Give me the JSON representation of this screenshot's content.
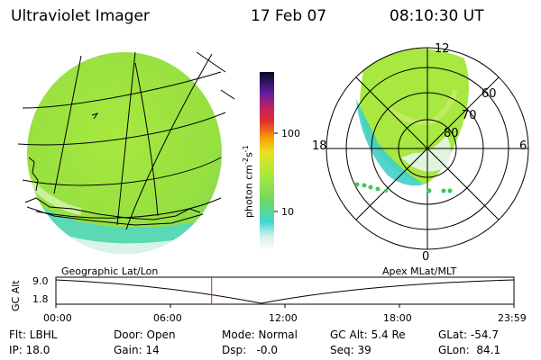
{
  "header": {
    "instrument": "Ultraviolet Imager",
    "date": "17 Feb 07",
    "time": "08:10:30 UT"
  },
  "colorbar": {
    "label": "photon cm",
    "label_sup1": "-2",
    "label_mid": "s",
    "label_sup2": "-1",
    "ticks": [
      "100",
      "10"
    ]
  },
  "polar_plot": {
    "mlt_labels": {
      "top": "12",
      "left": "18",
      "right": "6",
      "bottom": "0"
    },
    "lat_labels": [
      "60",
      "70",
      "80"
    ]
  },
  "timeline": {
    "left_caption": "Geographic Lat/Lon",
    "right_caption": "Apex MLat/MLT",
    "axis_label": "GC Alt",
    "y_ticks": [
      "9.0",
      "1.8"
    ],
    "x_ticks": [
      "00:00",
      "06:00",
      "12:00",
      "18:00",
      "23:59"
    ],
    "current_time_fraction": 0.34
  },
  "status": {
    "row1": [
      {
        "label": "Flt: LBHL"
      },
      {
        "label": "Door: Open"
      },
      {
        "label": "Mode: Normal"
      },
      {
        "label": "GC Alt: 5.4 Re"
      },
      {
        "label": "GLat: -54.7"
      }
    ],
    "row2": [
      {
        "label": "IP: 18.0"
      },
      {
        "label": "Gain: 14"
      },
      {
        "label": "Dsp:   -0.0"
      },
      {
        "label": "Seq: 39"
      },
      {
        "label": "GLon:  84.1"
      }
    ]
  },
  "colors": {
    "image_main": "#a8e840",
    "image_dim": "#40d0c8",
    "marker_red": "#cc2222",
    "dot_green": "#33cc55"
  }
}
